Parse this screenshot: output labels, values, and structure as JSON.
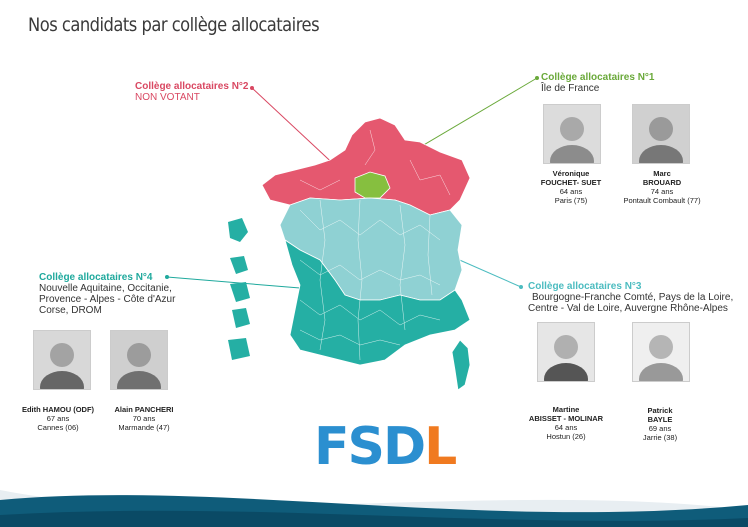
{
  "page": {
    "title": "Nos candidats par collège allocataires"
  },
  "colleges": {
    "c1": {
      "title": "Collège allocataires N°1",
      "sub": "Île de France",
      "color": "#6aa93a"
    },
    "c2": {
      "title": "Collège allocataires N°2",
      "sub": "NON VOTANT",
      "color": "#d94862"
    },
    "c3": {
      "title": "Collège allocataires N°3",
      "sub_line1": "Bourgogne-Franche Comté, Pays de la Loire,",
      "sub_line2": "Centre - Val de Loire, Auvergne  Rhône-Alpes",
      "color": "#4cbcc0"
    },
    "c4": {
      "title": "Collège allocataires N°4",
      "sub_line1": "Nouvelle Aquitaine, Occitanie,",
      "sub_line2": "Provence - Alpes - Côte d'Azur",
      "sub_line3": "Corse, DROM",
      "color": "#1fa99d"
    }
  },
  "candidates": {
    "veronique": {
      "name1": "Véronique",
      "name2": "FOUCHET- SUET",
      "age": "64 ans",
      "place": "Paris (75)"
    },
    "marc": {
      "name1": "Marc",
      "name2": "BROUARD",
      "age": "74 ans",
      "place": "Pontault Combault (77)"
    },
    "martine": {
      "name1": "Martine",
      "name2": "ABISSET - MOLINAR",
      "age": "64 ans",
      "place": "Hostun (26)"
    },
    "patrick": {
      "name1": "Patrick",
      "name2": "BAYLE",
      "age": "69 ans",
      "place": "Jarrie (38)"
    },
    "edith": {
      "name1": "Edith  HAMOU (ODF)",
      "age": "67 ans",
      "place": "Cannes (06)"
    },
    "alain": {
      "name1": "Alain PANCHERI",
      "age": "70 ans",
      "place": "Marmande (47)"
    }
  },
  "logo": {
    "fsd": "FSD",
    "l": "L"
  }
}
